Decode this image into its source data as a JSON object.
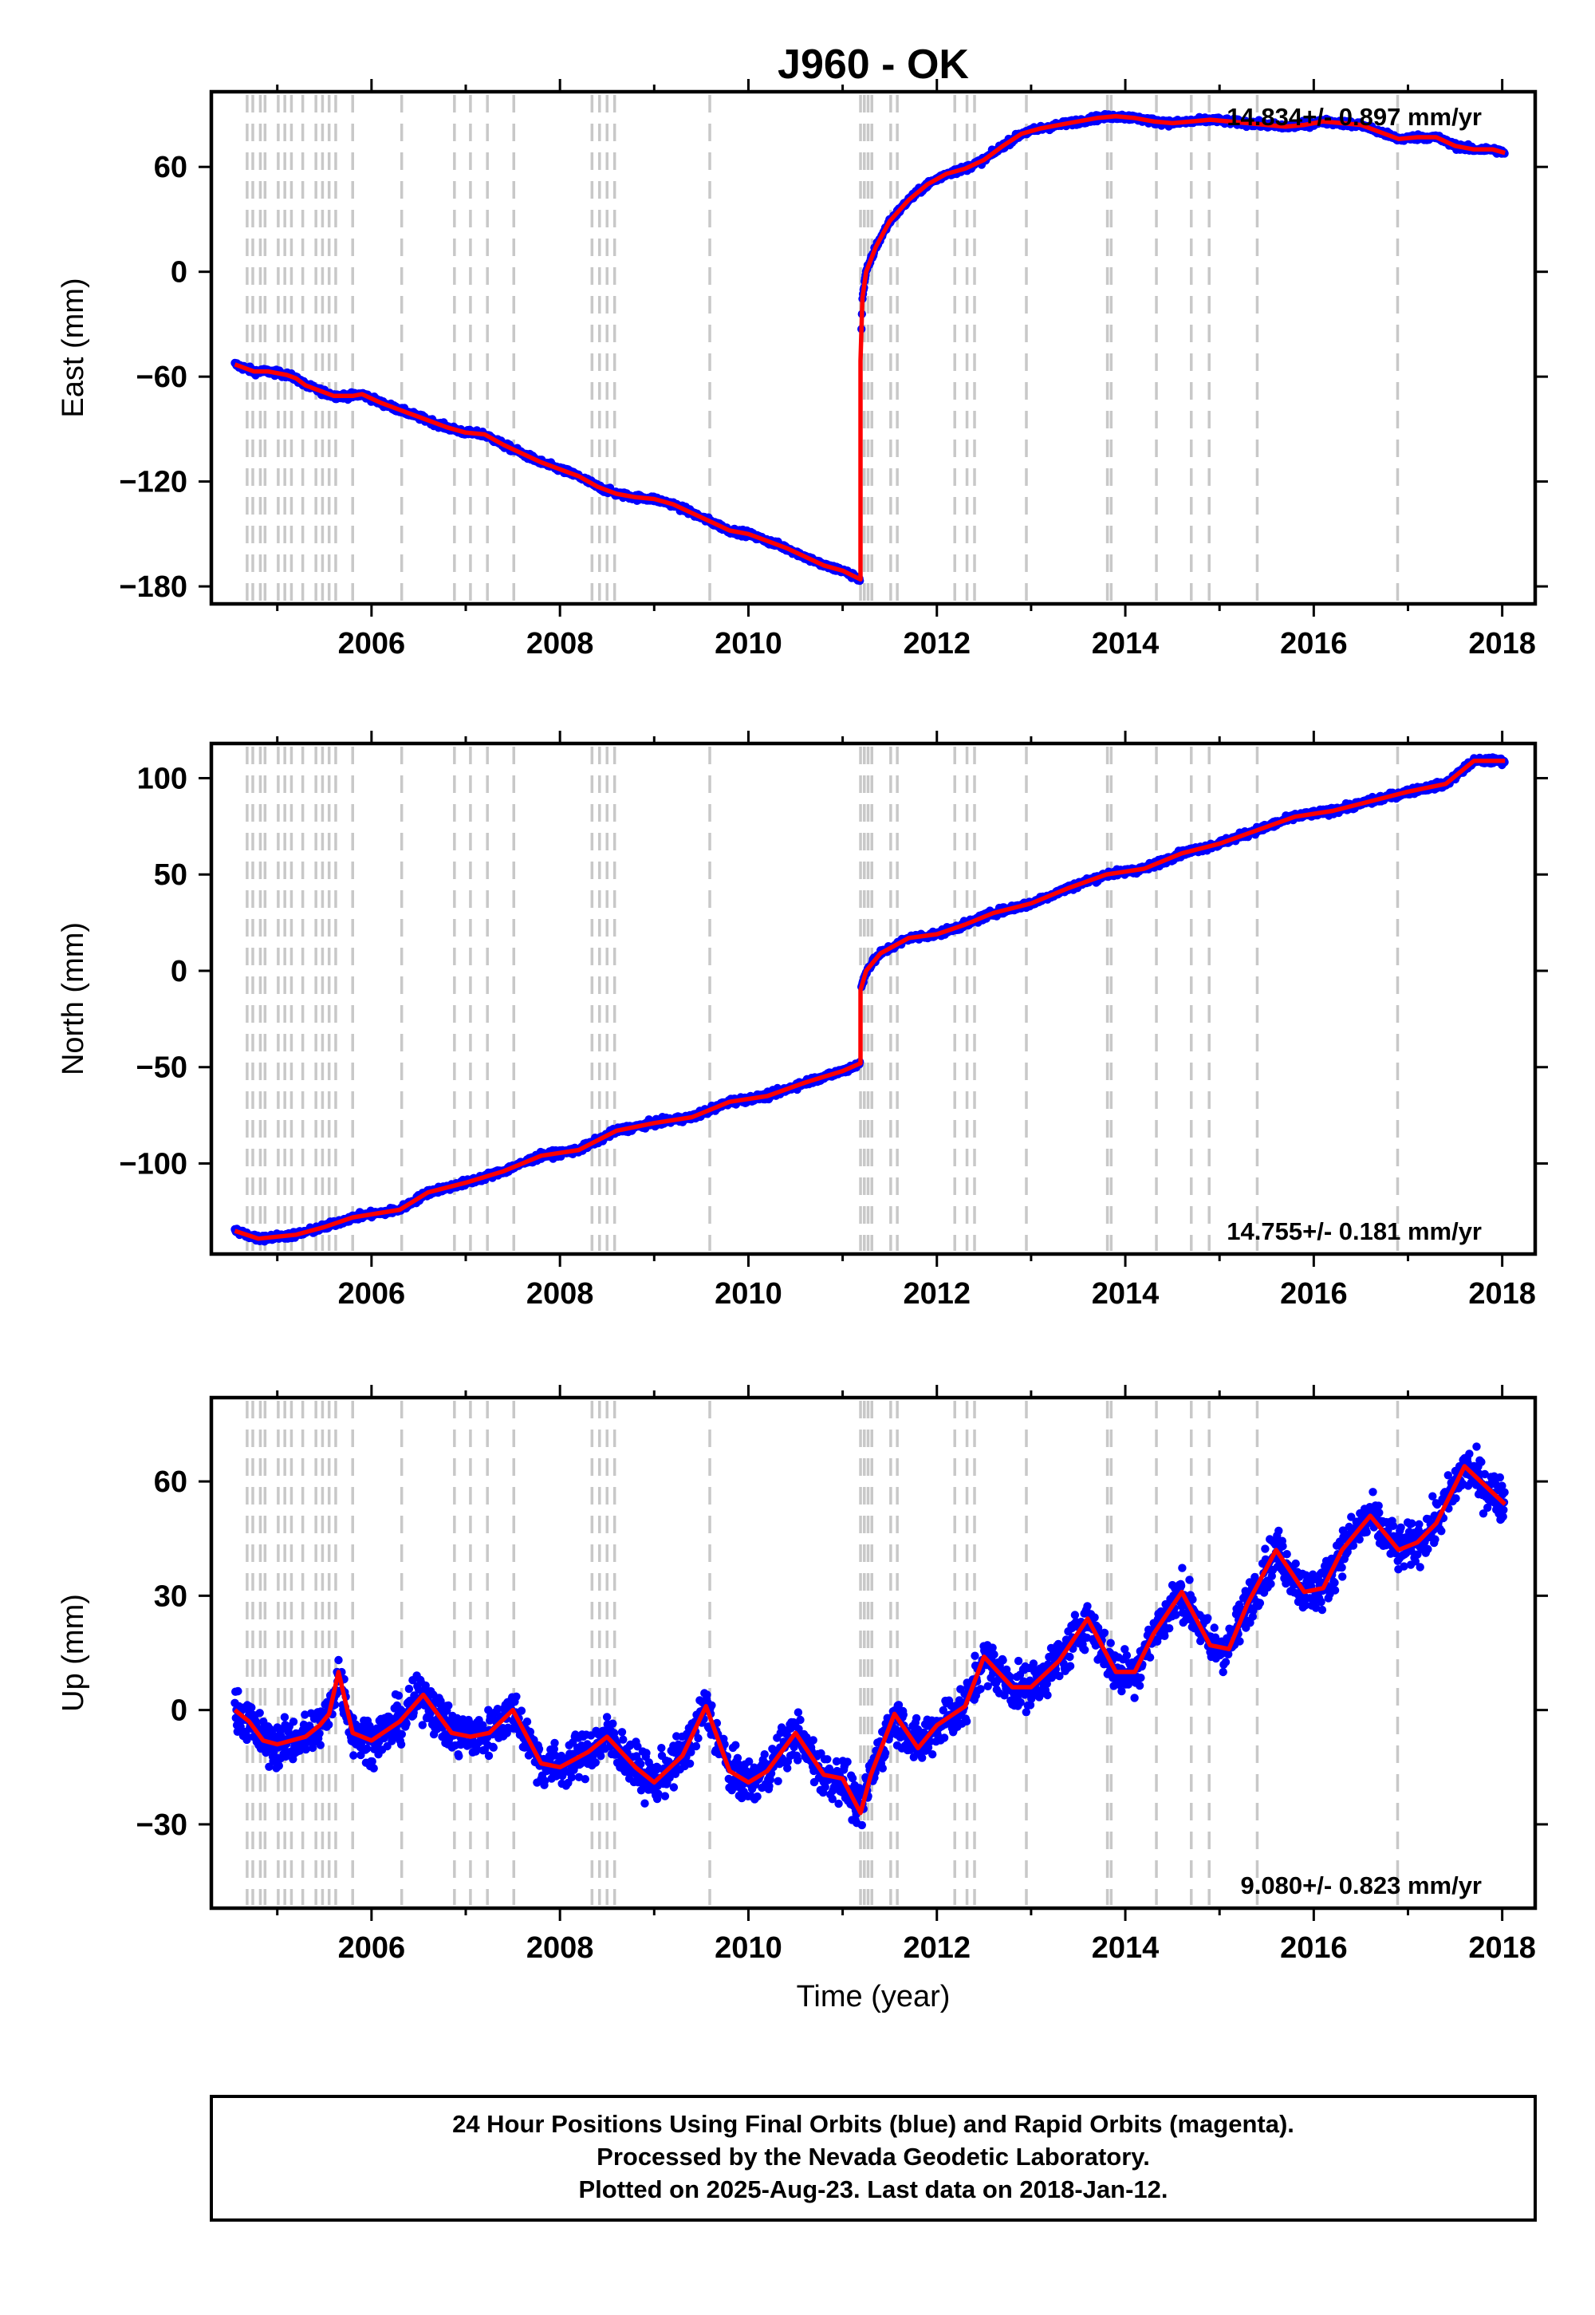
{
  "title": "J960 - OK",
  "xlabel": "Time (year)",
  "x_ticks": [
    2006,
    2008,
    2010,
    2012,
    2014,
    2016,
    2018
  ],
  "colors": {
    "data": "#0000ff",
    "model": "#ff0000",
    "events": "#c8c8c8",
    "frame": "#000000"
  },
  "event_lines": [
    2004.68,
    2004.74,
    2004.82,
    2004.87,
    2005.01,
    2005.08,
    2005.15,
    2005.27,
    2005.41,
    2005.48,
    2005.55,
    2005.62,
    2005.8,
    2006.32,
    2006.88,
    2007.05,
    2007.23,
    2007.51,
    2008.34,
    2008.42,
    2008.5,
    2008.58,
    2009.59,
    2011.19,
    2011.23,
    2011.27,
    2011.31,
    2011.51,
    2011.58,
    2012.19,
    2012.32,
    2012.4,
    2012.95,
    2013.81,
    2013.85,
    2014.33,
    2014.7,
    2014.89,
    2015.4,
    2016.89
  ],
  "chart_data": [
    {
      "type": "scatter",
      "component": "East",
      "ylabel": "East (mm)",
      "y_ticks": [
        -180,
        -120,
        -60,
        0,
        60
      ],
      "ylim": [
        -190,
        103
      ],
      "xlim": [
        2004.3,
        2018.35
      ],
      "rate_text": "14.834+/- 0.897 mm/yr",
      "rate_position": "top-right",
      "noise": 1.6,
      "series": [
        {
          "name": "model",
          "x": [
            2004.55,
            2004.65,
            2004.75,
            2004.9,
            2005.1,
            2005.2,
            2005.3,
            2005.5,
            2005.6,
            2005.8,
            2005.9,
            2006.1,
            2006.3,
            2006.5,
            2006.8,
            2007.0,
            2007.2,
            2007.4,
            2007.6,
            2007.8,
            2008.0,
            2008.2,
            2008.4,
            2008.6,
            2008.8,
            2009.0,
            2009.2,
            2009.4,
            2009.6,
            2009.8,
            2010.0,
            2010.2,
            2010.4,
            2010.6,
            2010.8,
            2011.0,
            2011.19,
            2011.19,
            2011.21,
            2011.25,
            2011.35,
            2011.5,
            2011.7,
            2011.9,
            2012.1,
            2012.3,
            2012.5,
            2012.7,
            2012.9,
            2013.1,
            2013.3,
            2013.5,
            2013.7,
            2013.9,
            2014.1,
            2014.3,
            2014.5,
            2014.7,
            2014.9,
            2015.1,
            2015.3,
            2015.5,
            2015.7,
            2015.9,
            2016.1,
            2016.3,
            2016.5,
            2016.7,
            2016.9,
            2017.1,
            2017.3,
            2017.5,
            2017.7,
            2017.9,
            2018.03
          ],
          "y": [
            -53,
            -55,
            -57,
            -57,
            -59,
            -61,
            -65,
            -69,
            -71,
            -71,
            -70,
            -75,
            -79,
            -83,
            -89,
            -92,
            -93,
            -99,
            -104,
            -109,
            -113,
            -117,
            -123,
            -127,
            -129,
            -130,
            -133,
            -138,
            -143,
            -148,
            -150,
            -154,
            -158,
            -163,
            -168,
            -171,
            -176,
            -51,
            -15,
            0,
            14,
            29,
            41,
            50,
            56,
            59,
            64,
            72,
            79,
            82,
            84,
            86,
            88,
            89,
            88,
            86,
            85,
            86,
            87,
            86,
            85,
            84,
            83,
            84,
            86,
            85,
            84,
            80,
            76,
            77,
            77,
            72,
            70,
            70,
            68
          ]
        },
        {
          "name": "data",
          "x": [
            2004.55,
            2004.65,
            2004.75,
            2004.9,
            2005.1,
            2005.2,
            2005.3,
            2005.5,
            2005.6,
            2005.8,
            2005.9,
            2006.1,
            2006.3,
            2006.5,
            2006.8,
            2007.0,
            2007.2,
            2007.4,
            2007.6,
            2007.8,
            2008.0,
            2008.2,
            2008.4,
            2008.6,
            2008.8,
            2009.0,
            2009.2,
            2009.4,
            2009.6,
            2009.8,
            2010.0,
            2010.2,
            2010.4,
            2010.6,
            2010.8,
            2011.0,
            2011.19,
            2011.19,
            2011.21,
            2011.25,
            2011.35,
            2011.5,
            2011.7,
            2011.9,
            2012.1,
            2012.3,
            2012.5,
            2012.7,
            2012.9,
            2013.1,
            2013.3,
            2013.5,
            2013.7,
            2013.9,
            2014.1,
            2014.3,
            2014.5,
            2014.7,
            2014.9,
            2015.1,
            2015.3,
            2015.5,
            2015.7,
            2015.9,
            2016.1,
            2016.3,
            2016.5,
            2016.7,
            2016.9,
            2017.1,
            2017.3,
            2017.5,
            2017.7,
            2017.9,
            2018.03
          ],
          "y": [
            -53,
            -55,
            -57,
            -57,
            -59,
            -61,
            -65,
            -69,
            -71,
            -71,
            -70,
            -75,
            -79,
            -83,
            -89,
            -92,
            -93,
            -99,
            -104,
            -109,
            -113,
            -117,
            -123,
            -127,
            -129,
            -130,
            -133,
            -138,
            -143,
            -148,
            -150,
            -154,
            -158,
            -163,
            -168,
            -171,
            -176,
            -51,
            -15,
            0,
            14,
            29,
            41,
            50,
            56,
            59,
            64,
            72,
            79,
            82,
            84,
            86,
            88,
            89,
            88,
            86,
            85,
            86,
            87,
            86,
            85,
            84,
            83,
            84,
            86,
            85,
            84,
            80,
            76,
            77,
            77,
            72,
            70,
            70,
            68
          ]
        }
      ]
    },
    {
      "type": "scatter",
      "component": "North",
      "ylabel": "North (mm)",
      "y_ticks": [
        -100,
        -50,
        0,
        50,
        100
      ],
      "ylim": [
        -147,
        118
      ],
      "xlim": [
        2004.3,
        2018.35
      ],
      "rate_text": "14.755+/- 0.181 mm/yr",
      "rate_position": "bottom-right",
      "noise": 1.6,
      "series": [
        {
          "name": "model",
          "x": [
            2004.55,
            2004.8,
            2005.2,
            2005.5,
            2005.8,
            2006.3,
            2006.6,
            2007.0,
            2007.4,
            2007.8,
            2008.2,
            2008.6,
            2009.0,
            2009.4,
            2009.8,
            2010.2,
            2010.6,
            2011.0,
            2011.19,
            2011.19,
            2011.25,
            2011.4,
            2011.7,
            2012.0,
            2012.3,
            2012.6,
            2013.0,
            2013.4,
            2013.8,
            2014.2,
            2014.6,
            2015.0,
            2015.4,
            2015.8,
            2016.2,
            2016.6,
            2017.0,
            2017.4,
            2017.7,
            2018.03
          ],
          "y": [
            -135,
            -139,
            -137,
            -133,
            -128,
            -124,
            -115,
            -110,
            -104,
            -96,
            -93,
            -83,
            -79,
            -76,
            -68,
            -65,
            -58,
            -52,
            -48,
            -10,
            0,
            9,
            17,
            19,
            24,
            30,
            35,
            43,
            50,
            53,
            61,
            66,
            73,
            80,
            83,
            88,
            93,
            97,
            109,
            109
          ]
        },
        {
          "name": "data",
          "x": [
            2004.55,
            2004.8,
            2005.2,
            2005.5,
            2005.8,
            2006.3,
            2006.6,
            2007.0,
            2007.4,
            2007.8,
            2008.2,
            2008.6,
            2009.0,
            2009.4,
            2009.8,
            2010.2,
            2010.6,
            2011.0,
            2011.19,
            2011.19,
            2011.25,
            2011.4,
            2011.7,
            2012.0,
            2012.3,
            2012.6,
            2013.0,
            2013.4,
            2013.8,
            2014.2,
            2014.6,
            2015.0,
            2015.4,
            2015.8,
            2016.2,
            2016.6,
            2017.0,
            2017.4,
            2017.7,
            2018.03
          ],
          "y": [
            -135,
            -139,
            -137,
            -133,
            -128,
            -124,
            -115,
            -110,
            -104,
            -96,
            -93,
            -83,
            -79,
            -76,
            -68,
            -65,
            -58,
            -52,
            -48,
            -10,
            0,
            9,
            17,
            19,
            24,
            30,
            35,
            43,
            50,
            53,
            61,
            66,
            73,
            80,
            83,
            88,
            93,
            97,
            109,
            109
          ]
        }
      ]
    },
    {
      "type": "scatter",
      "component": "Up",
      "ylabel": "Up (mm)",
      "y_ticks": [
        -30,
        0,
        30,
        60
      ],
      "ylim": [
        -52,
        82
      ],
      "xlim": [
        2004.3,
        2018.35
      ],
      "rate_text": "9.080+/- 0.823 mm/yr",
      "rate_position": "bottom-right",
      "noise": 5.5,
      "series": [
        {
          "name": "model",
          "x": [
            2004.55,
            2004.7,
            2004.85,
            2005.0,
            2005.15,
            2005.3,
            2005.45,
            2005.55,
            2005.65,
            2005.8,
            2006.0,
            2006.3,
            2006.55,
            2006.85,
            2007.05,
            2007.25,
            2007.5,
            2007.8,
            2008.0,
            2008.3,
            2008.5,
            2008.8,
            2009.0,
            2009.3,
            2009.55,
            2009.8,
            2010.0,
            2010.2,
            2010.5,
            2010.8,
            2011.0,
            2011.19,
            2011.3,
            2011.55,
            2011.8,
            2012.0,
            2012.3,
            2012.5,
            2012.8,
            2013.0,
            2013.3,
            2013.6,
            2013.9,
            2014.1,
            2014.3,
            2014.6,
            2014.9,
            2015.1,
            2015.3,
            2015.6,
            2015.9,
            2016.1,
            2016.3,
            2016.6,
            2016.9,
            2017.1,
            2017.3,
            2017.6,
            2017.9,
            2018.03
          ],
          "y": [
            0,
            -3,
            -8,
            -9,
            -8,
            -7,
            -4,
            -1,
            10,
            -6,
            -8,
            -3,
            4,
            -6,
            -7,
            -6,
            0,
            -14,
            -15,
            -11,
            -7,
            -15,
            -19,
            -12,
            1,
            -16,
            -19,
            -16,
            -6,
            -17,
            -18,
            -27,
            -17,
            -1,
            -10,
            -4,
            1,
            14,
            6,
            6,
            13,
            24,
            10,
            10,
            20,
            31,
            17,
            16,
            28,
            42,
            31,
            32,
            42,
            51,
            42,
            44,
            49,
            64,
            57,
            54
          ]
        },
        {
          "name": "data",
          "x": [
            2004.55,
            2004.7,
            2004.85,
            2005.0,
            2005.15,
            2005.3,
            2005.45,
            2005.55,
            2005.65,
            2005.8,
            2006.0,
            2006.3,
            2006.55,
            2006.85,
            2007.05,
            2007.25,
            2007.5,
            2007.8,
            2008.0,
            2008.3,
            2008.5,
            2008.8,
            2009.0,
            2009.3,
            2009.55,
            2009.8,
            2010.0,
            2010.2,
            2010.5,
            2010.8,
            2011.0,
            2011.19,
            2011.3,
            2011.55,
            2011.8,
            2012.0,
            2012.3,
            2012.5,
            2012.8,
            2013.0,
            2013.3,
            2013.6,
            2013.9,
            2014.1,
            2014.3,
            2014.6,
            2014.9,
            2015.1,
            2015.3,
            2015.6,
            2015.9,
            2016.1,
            2016.3,
            2016.6,
            2016.9,
            2017.1,
            2017.3,
            2017.6,
            2017.9,
            2018.03
          ],
          "y": [
            0,
            -3,
            -8,
            -9,
            -8,
            -7,
            -4,
            -1,
            10,
            -6,
            -8,
            -3,
            4,
            -6,
            -7,
            -6,
            0,
            -14,
            -15,
            -11,
            -7,
            -15,
            -19,
            -12,
            1,
            -16,
            -19,
            -16,
            -6,
            -17,
            -18,
            -27,
            -17,
            -1,
            -10,
            -4,
            1,
            14,
            6,
            6,
            13,
            24,
            10,
            10,
            20,
            31,
            17,
            16,
            28,
            42,
            31,
            32,
            42,
            51,
            42,
            44,
            49,
            64,
            57,
            54
          ]
        }
      ]
    }
  ],
  "footer": {
    "line1": "24 Hour Positions Using Final Orbits (blue) and Rapid Orbits (magenta).",
    "line2": "Processed by the Nevada Geodetic Laboratory.",
    "line3": "Plotted on 2025-Aug-23. Last data on 2018-Jan-12."
  }
}
